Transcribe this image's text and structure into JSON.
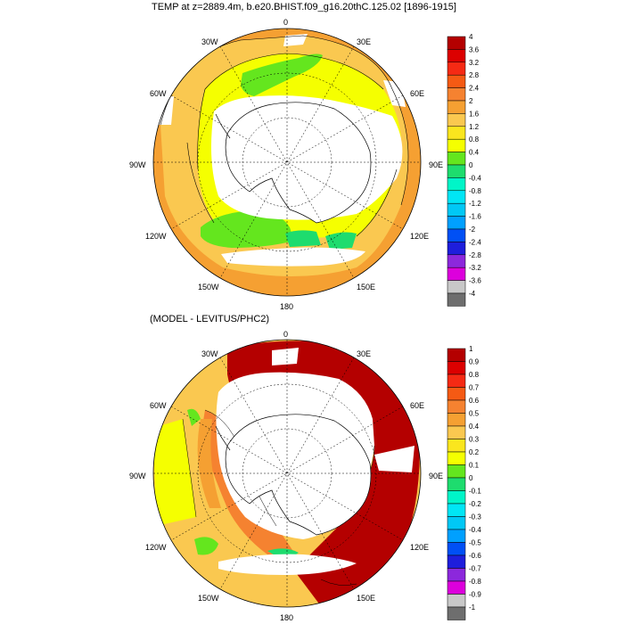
{
  "top_panel": {
    "title": "TEMP at z=2889.4m, b.e20.BHIST.f09_g16.20thC.125.02 [1896-1915]",
    "lon_labels": [
      "0",
      "30E",
      "60E",
      "90E",
      "120E",
      "150E",
      "180",
      "150W",
      "120W",
      "90W",
      "60W",
      "30W"
    ],
    "colorbar": {
      "labels": [
        "4",
        "3.6",
        "3.2",
        "2.8",
        "2.4",
        "2",
        "1.6",
        "1.2",
        "0.8",
        "0.4",
        "0",
        "-0.4",
        "-0.8",
        "-1.2",
        "-1.6",
        "-2",
        "-2.4",
        "-2.8",
        "-3.2",
        "-3.6",
        "-4"
      ],
      "colors": [
        "#b40000",
        "#dc0000",
        "#f52a14",
        "#f55a14",
        "#f58230",
        "#f5a032",
        "#fac850",
        "#fae61e",
        "#f5ff00",
        "#64e61e",
        "#1edc6e",
        "#00f5c8",
        "#00e6f5",
        "#00c8f5",
        "#00a0ff",
        "#0050f5",
        "#1e1edc",
        "#8c28dc",
        "#dc00dc",
        "#c8c8c8",
        "#6e6e6e"
      ]
    }
  },
  "bottom_panel": {
    "title": "(MODEL - LEVITUS/PHC2)",
    "lon_labels": [
      "0",
      "30E",
      "60E",
      "90E",
      "120E",
      "150E",
      "180",
      "150W",
      "120W",
      "90W",
      "60W",
      "30W"
    ],
    "colorbar": {
      "labels": [
        "1",
        "0.9",
        "0.8",
        "0.7",
        "0.6",
        "0.5",
        "0.4",
        "0.3",
        "0.2",
        "0.1",
        "0",
        "-0.1",
        "-0.2",
        "-0.3",
        "-0.4",
        "-0.5",
        "-0.6",
        "-0.7",
        "-0.8",
        "-0.9",
        "-1"
      ],
      "colors": [
        "#b40000",
        "#dc0000",
        "#f52a14",
        "#f55a14",
        "#f58230",
        "#f5a032",
        "#fac850",
        "#fae61e",
        "#f5ff00",
        "#64e61e",
        "#1edc6e",
        "#00f5c8",
        "#00e6f5",
        "#00c8f5",
        "#00a0ff",
        "#0050f5",
        "#1e1edc",
        "#8c28dc",
        "#dc00dc",
        "#c8c8c8",
        "#6e6e6e"
      ]
    }
  },
  "colors": {
    "land": "#ffffff",
    "ice_missing": "#ffffff"
  }
}
